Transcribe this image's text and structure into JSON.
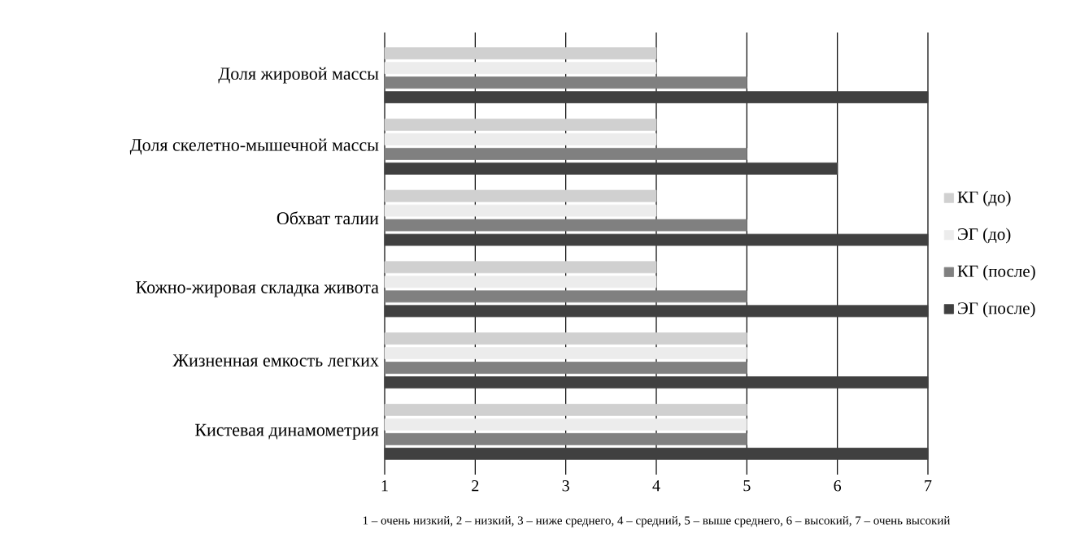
{
  "chart_data": {
    "type": "bar",
    "orientation": "horizontal",
    "categories": [
      "Доля жировой массы",
      "Доля скелетно-мышечной массы",
      "Обхват талии",
      "Кожно-жировая складка живота",
      "Жизненная емкость легких",
      "Кистевая динамометрия"
    ],
    "series": [
      {
        "name": "КГ (до)",
        "color": "#d0d0d0",
        "values": [
          4,
          4,
          4,
          4,
          5,
          5
        ]
      },
      {
        "name": "ЭГ (до)",
        "color": "#ececec",
        "values": [
          4,
          4,
          4,
          4,
          5,
          5
        ]
      },
      {
        "name": "КГ (после)",
        "color": "#808080",
        "values": [
          5,
          5,
          5,
          5,
          5,
          5
        ]
      },
      {
        "name": "ЭГ (после)",
        "color": "#404040",
        "values": [
          7,
          6,
          7,
          7,
          7,
          7
        ]
      }
    ],
    "xlim": [
      1,
      7
    ],
    "xticks": [
      1,
      2,
      3,
      4,
      5,
      6,
      7
    ],
    "grid": "x",
    "legend": "right",
    "annotations": [
      "1 – очень низкий, 2 – низкий, 3 – ниже среднего, 4 – средний, 5 – выше среднего, 6 – высокий, 7 – очень высокий"
    ]
  }
}
